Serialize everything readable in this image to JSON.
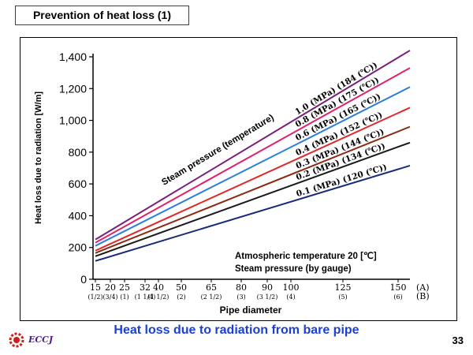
{
  "slide": {
    "title": "Prevention of heat loss (1)",
    "caption": "Heat loss due to radiation from bare pipe",
    "page_number": "33",
    "logo_text": "ECCJ"
  },
  "chart_data": {
    "type": "line",
    "ylabel": "Heat loss due to radiation [W/m]",
    "xlabel": "Pipe diameter",
    "ylim": [
      0,
      1400
    ],
    "y_ticks": [
      "0",
      "200",
      "400",
      "600",
      "800",
      "1,000",
      "1,200",
      "1,400"
    ],
    "grid": false,
    "x_ticks": [
      {
        "a": "15",
        "b": "(1/2)"
      },
      {
        "a": "20",
        "b": "(3/4)"
      },
      {
        "a": "25",
        "b": "(1)"
      },
      {
        "a": "32",
        "b": "(1 1/4)"
      },
      {
        "a": "40",
        "b": "(1 1/2)"
      },
      {
        "a": "50",
        "b": "(2)"
      },
      {
        "a": "65",
        "b": "(2 1/2)"
      },
      {
        "a": "80",
        "b": "(3)"
      },
      {
        "a": "90",
        "b": "(3 1/2)"
      },
      {
        "a": "100",
        "b": "(4)"
      },
      {
        "a": "125",
        "b": "(5)"
      },
      {
        "a": "150",
        "b": "(6)"
      }
    ],
    "x_unit_labels": {
      "a": "(A)",
      "b": "(B)"
    },
    "series_label": "Steam pressure (temperature)",
    "series": [
      {
        "name": "1.0 (MPa) (184 (℃))",
        "color": "#7a1f7a",
        "values": [
          {
            "x": "15",
            "y": 250
          },
          {
            "x": "150",
            "y": 1440
          }
        ]
      },
      {
        "name": "0.8 (MPa) (175 (℃))",
        "color": "#e0206a",
        "values": [
          {
            "x": "15",
            "y": 230
          },
          {
            "x": "150",
            "y": 1330
          }
        ]
      },
      {
        "name": "0.6 (MPa) (165 (℃))",
        "color": "#2a7de0",
        "values": [
          {
            "x": "15",
            "y": 210
          },
          {
            "x": "150",
            "y": 1210
          }
        ]
      },
      {
        "name": "0.4 (MPa) (152 (℃))",
        "color": "#e02a2a",
        "values": [
          {
            "x": "15",
            "y": 180
          },
          {
            "x": "150",
            "y": 1080
          }
        ]
      },
      {
        "name": "0.3 (MPa) (144 (℃))",
        "color": "#8b2a10",
        "values": [
          {
            "x": "15",
            "y": 165
          },
          {
            "x": "150",
            "y": 960
          }
        ]
      },
      {
        "name": "0.2 (MPa) (134 (℃))",
        "color": "#1a1a1a",
        "values": [
          {
            "x": "15",
            "y": 145
          },
          {
            "x": "150",
            "y": 860
          }
        ]
      },
      {
        "name": "0.1 (MPa) (120 (℃))",
        "color": "#1a2a7a",
        "values": [
          {
            "x": "15",
            "y": 115
          },
          {
            "x": "150",
            "y": 715
          }
        ]
      }
    ],
    "annotations": [
      "Atmospheric temperature 20 [℃]",
      "Steam pressure (by gauge)"
    ]
  }
}
